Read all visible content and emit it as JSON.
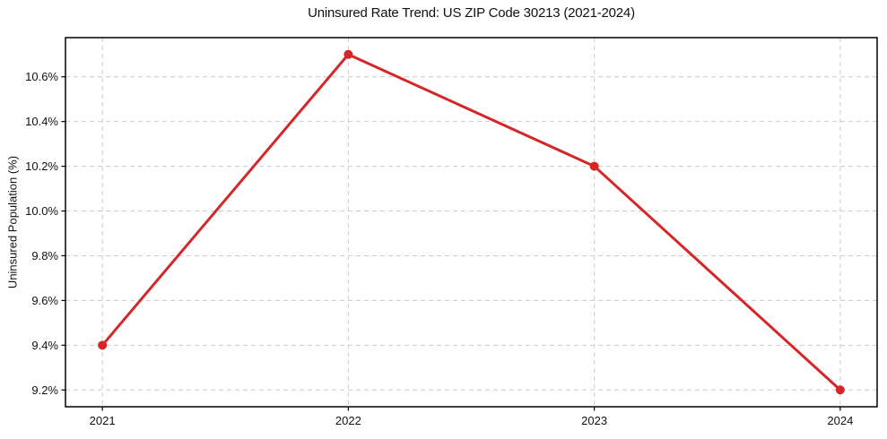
{
  "page": {
    "background_color": "#ffffff"
  },
  "chart_data": {
    "type": "line",
    "title": "Uninsured Rate Trend: US ZIP Code 30213 (2021-2024)",
    "xlabel": "",
    "ylabel": "Uninsured Population (%)",
    "x": [
      2021,
      2022,
      2023,
      2024
    ],
    "x_tick_labels": [
      "2021",
      "2022",
      "2023",
      "2024"
    ],
    "series": [
      {
        "name": "Uninsured Rate",
        "values": [
          9.4,
          10.7,
          10.2,
          9.2
        ]
      }
    ],
    "y_ticks": [
      9.2,
      9.4,
      9.6,
      9.8,
      10.0,
      10.2,
      10.4,
      10.6
    ],
    "y_tick_labels": [
      "9.2%",
      "9.4%",
      "9.6%",
      "9.8%",
      "10.0%",
      "10.2%",
      "10.4%",
      "10.6%"
    ],
    "xlim": [
      2020.85,
      2024.15
    ],
    "ylim": [
      9.125,
      10.775
    ],
    "grid": true,
    "grid_style": "dashed",
    "legend_position": "none",
    "line_color": "#d62728",
    "marker_color": "#d62728",
    "grid_color": "#cccccc",
    "axis_color": "#000000",
    "line_width": 3,
    "marker_radius": 5
  }
}
